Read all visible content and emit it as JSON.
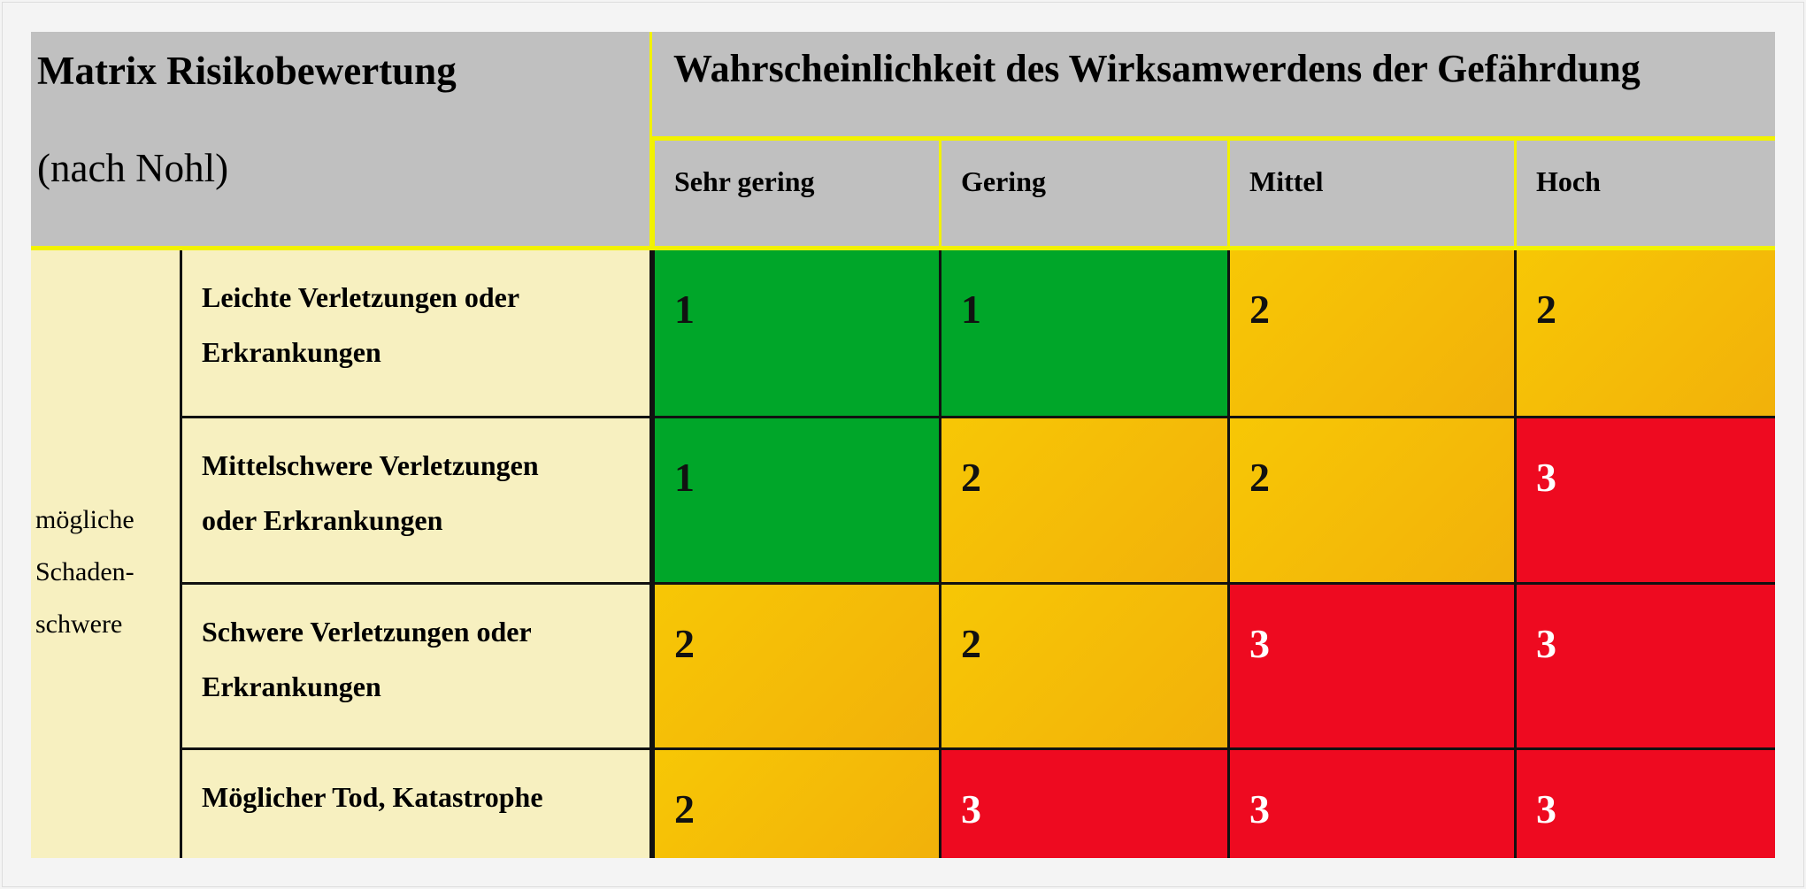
{
  "title": "Matrix Risikobewertung",
  "subtitle": "(nach Nohl)",
  "probability_header": "Wahrscheinlichkeit des Wirksamwerdens der Gefährdung",
  "columns": [
    "Sehr gering",
    "Gering",
    "Mittel",
    "Hoch"
  ],
  "severity_label": [
    "mögliche",
    "Schaden-",
    "schwere"
  ],
  "rows": [
    {
      "label": [
        "Leichte Verletzungen oder",
        "Erkrankungen"
      ],
      "values": [
        "1",
        "1",
        "2",
        "2"
      ]
    },
    {
      "label": [
        "Mittelschwere Verletzungen",
        "oder Erkrankungen"
      ],
      "values": [
        "1",
        "2",
        "2",
        "3"
      ]
    },
    {
      "label": [
        "Schwere Verletzungen oder",
        "Erkrankungen"
      ],
      "values": [
        "2",
        "2",
        "3",
        "3"
      ]
    },
    {
      "label": [
        "Möglicher Tod, Katastrophe"
      ],
      "values": [
        "2",
        "3",
        "3",
        "3"
      ]
    }
  ],
  "colors": {
    "1": "#00a629",
    "2": "#f5bd08",
    "3": "#ee0a20",
    "header": "#c0c0c0",
    "divider": "#f2f200",
    "label_bg": "#f7f0c0"
  }
}
